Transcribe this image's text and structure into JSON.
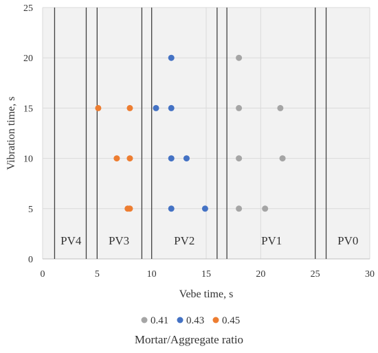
{
  "chart_data": {
    "type": "scatter",
    "xlabel": "Vebe time, s",
    "ylabel": "Vibration time, s",
    "xlim": [
      0,
      30
    ],
    "ylim": [
      0,
      25
    ],
    "xticks": [
      0,
      5,
      10,
      15,
      20,
      25,
      30
    ],
    "yticks": [
      0,
      5,
      10,
      15,
      20,
      25
    ],
    "grid": true,
    "legend": {
      "title": "Mortar/Aggregate ratio",
      "position": "bottom"
    },
    "series": [
      {
        "name": "0.41",
        "color": "#a5a5a5",
        "points": [
          {
            "x": 18.0,
            "y": 20
          },
          {
            "x": 18.0,
            "y": 15
          },
          {
            "x": 21.8,
            "y": 15
          },
          {
            "x": 18.0,
            "y": 10
          },
          {
            "x": 22.0,
            "y": 10
          },
          {
            "x": 18.0,
            "y": 5
          },
          {
            "x": 20.4,
            "y": 5
          }
        ]
      },
      {
        "name": "0.43",
        "color": "#4472c4",
        "points": [
          {
            "x": 11.8,
            "y": 20
          },
          {
            "x": 10.4,
            "y": 15
          },
          {
            "x": 11.8,
            "y": 15
          },
          {
            "x": 11.8,
            "y": 10
          },
          {
            "x": 13.2,
            "y": 10
          },
          {
            "x": 11.8,
            "y": 5
          },
          {
            "x": 14.9,
            "y": 5
          }
        ]
      },
      {
        "name": "0.45",
        "color": "#ed7d31",
        "points": [
          {
            "x": 5.1,
            "y": 15
          },
          {
            "x": 8.0,
            "y": 15
          },
          {
            "x": 6.8,
            "y": 10
          },
          {
            "x": 8.0,
            "y": 10
          },
          {
            "x": 7.8,
            "y": 5
          },
          {
            "x": 8.0,
            "y": 5
          }
        ]
      }
    ],
    "zone_boundaries": [
      1.1,
      4.0,
      5.0,
      9.1,
      10.0,
      16.0,
      16.9,
      25.0,
      26.0
    ],
    "zones": [
      {
        "label": "PV4",
        "from": 1.1,
        "to": 4.0,
        "label_x": 2.6
      },
      {
        "label": "PV3",
        "from": 5.0,
        "to": 9.1,
        "label_x": 7.0
      },
      {
        "label": "PV2",
        "from": 10.0,
        "to": 16.0,
        "label_x": 13.0
      },
      {
        "label": "PV1",
        "from": 16.9,
        "to": 25.0,
        "label_x": 21.0
      },
      {
        "label": "PV0",
        "from": 26.0,
        "to": 30.0,
        "label_x": 28.0
      }
    ],
    "zone_label_y": 1.45
  }
}
